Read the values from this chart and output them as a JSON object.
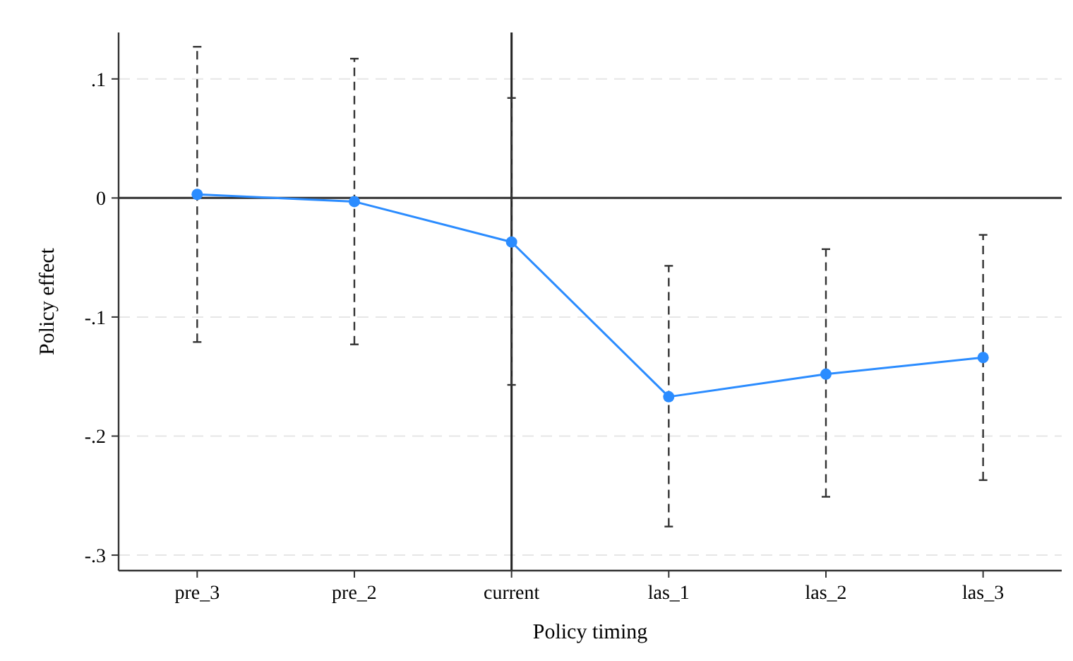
{
  "chart_data": {
    "type": "line",
    "xlabel": "Policy timing",
    "ylabel": "Policy effect",
    "categories": [
      "pre_3",
      "pre_2",
      "current",
      "las_1",
      "las_2",
      "las_3"
    ],
    "series": [
      {
        "color": "#2b8cff",
        "values": [
          0.003,
          -0.003,
          -0.037,
          -0.167,
          -0.148,
          -0.134
        ],
        "errors": [
          [
            -0.121,
            0.127
          ],
          [
            -0.123,
            0.117
          ],
          [
            -0.157,
            0.084
          ],
          [
            -0.276,
            -0.057
          ],
          [
            -0.251,
            -0.043
          ],
          [
            -0.237,
            -0.031
          ]
        ]
      }
    ],
    "ylim": [
      -0.313,
      0.139
    ],
    "yticks": [
      {
        "value": 0.1,
        "label": ".1"
      },
      0,
      {
        "value": -0.1,
        "label": "-.1"
      },
      {
        "value": -0.2,
        "label": "-.2"
      },
      {
        "value": -0.3,
        "label": "-.3"
      }
    ],
    "grid": "y",
    "marker": "circle",
    "line_style": "solid",
    "ref_lines": [
      {
        "axis": "y",
        "value": 0
      },
      {
        "axis": "x",
        "value": "current"
      }
    ]
  }
}
